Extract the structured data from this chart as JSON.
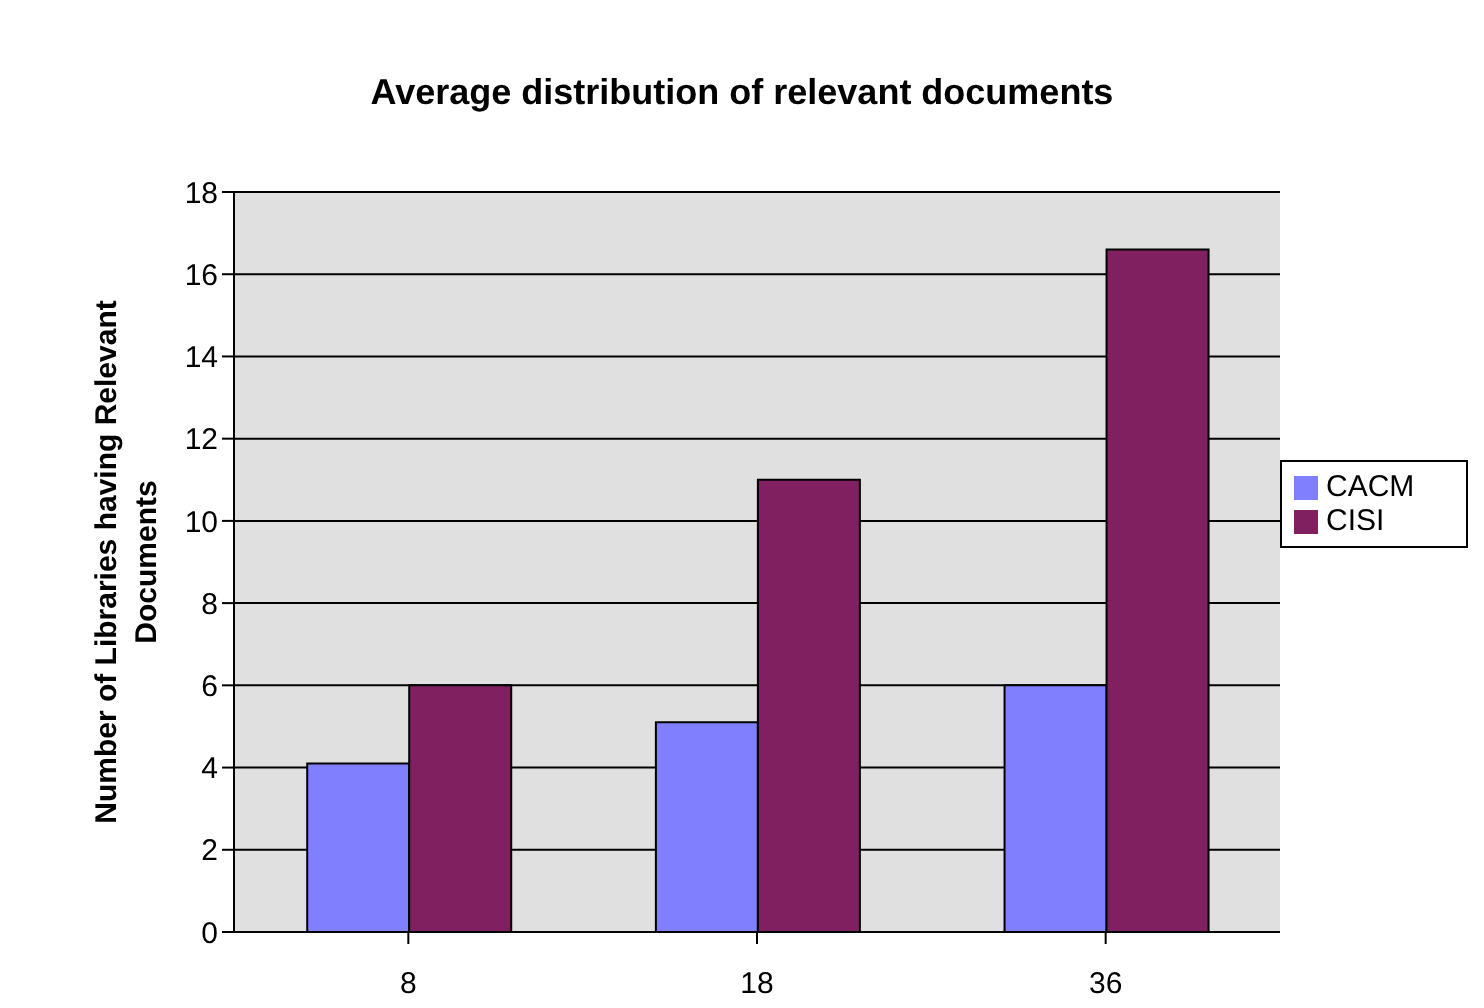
{
  "chart_data": {
    "type": "bar",
    "title": "Average distribution of relevant documents",
    "ylabel": "Number of Libraries having Relevant Documents",
    "categories": [
      "8",
      "18",
      "36"
    ],
    "series": [
      {
        "name": "CACM",
        "color": "#8080ff",
        "values": [
          4.1,
          5.1,
          6.0
        ]
      },
      {
        "name": "CISI",
        "color": "#802060",
        "values": [
          6.0,
          11.0,
          16.6
        ]
      }
    ],
    "ylim": [
      0,
      18
    ],
    "yticks": [
      0,
      2,
      4,
      6,
      8,
      10,
      12,
      14,
      16,
      18
    ],
    "grid": "y",
    "legend": "right"
  }
}
